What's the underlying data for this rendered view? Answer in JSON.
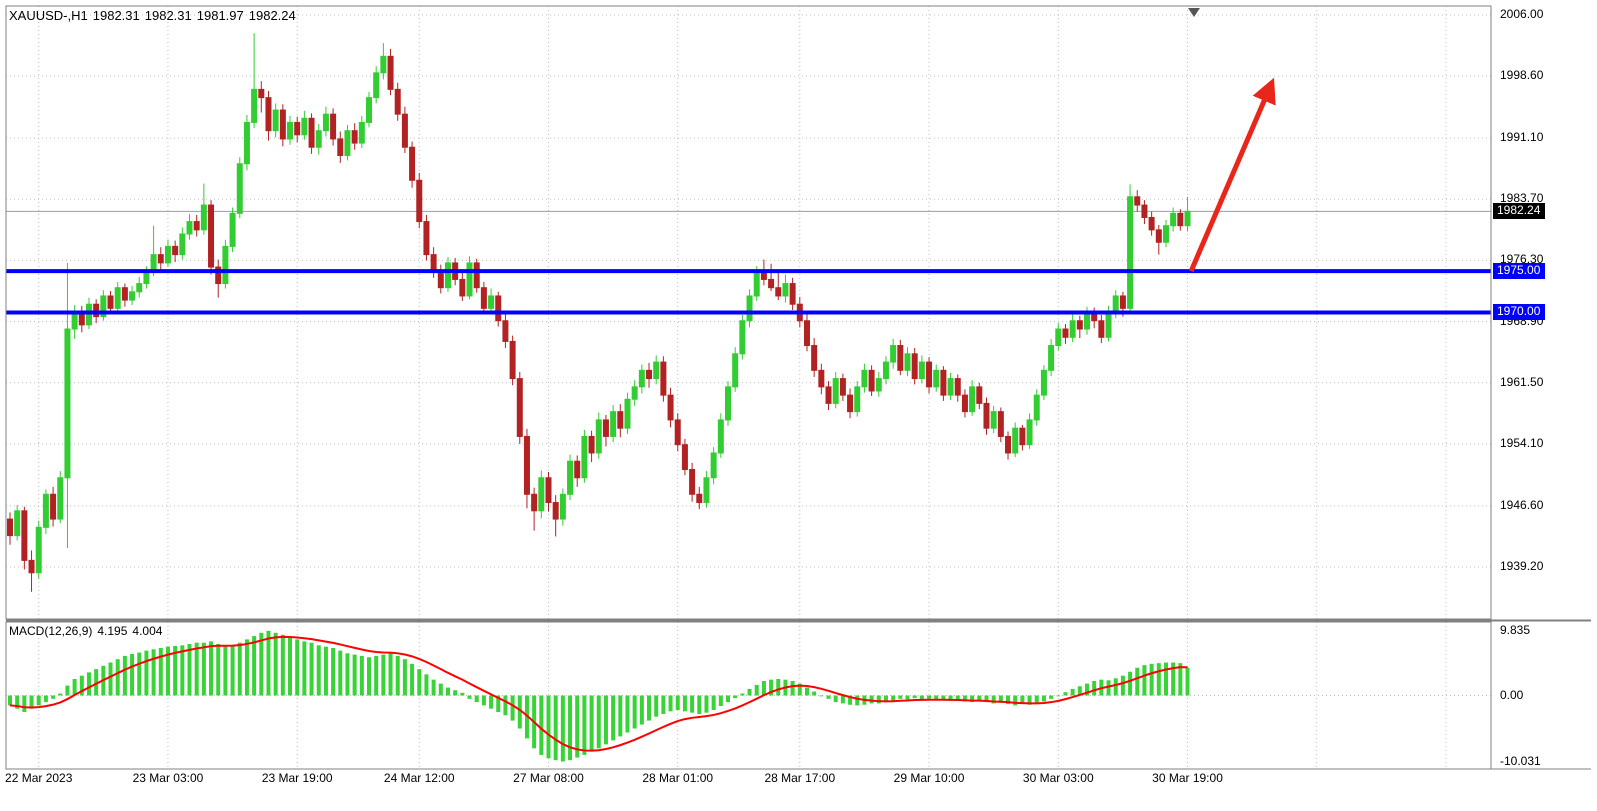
{
  "header": {
    "symbol_period": "XAUUSD-,H1",
    "open": "1982.31",
    "high": "1982.31",
    "low": "1981.97",
    "close": "1982.24"
  },
  "indicator": {
    "name": "MACD(12,26,9)",
    "main_value": "4.195",
    "signal_value": "4.004"
  },
  "axis": {
    "last_price_badge": "1982.24",
    "hline_badge_1": "1975.00",
    "hline_badge_2": "1970.00",
    "macd_tick_1": "9.835",
    "macd_tick_2": "0.00",
    "macd_tick_3": "-10.031"
  },
  "colors": {
    "bull": "#32CD32",
    "bear": "#B22222",
    "macd_bar": "#37D337",
    "macd_signal": "#FF0000",
    "hline": "#0000FF",
    "arrow": "#E8261A",
    "grid": "#BFBFBF",
    "border": "#808080",
    "last_price_line": "#8FA0B3",
    "badge_last_bg": "#000000",
    "badge_hline_bg": "#0000FF",
    "text": "#000000",
    "background": "#FFFFFF"
  },
  "chart_data": {
    "type": "candlestick",
    "symbol": "XAUUSD",
    "timeframe": "H1",
    "last_price": 1982.24,
    "price_ticks": [
      2006.0,
      1998.6,
      1991.1,
      1983.7,
      1976.3,
      1968.9,
      1961.5,
      1954.1,
      1946.6,
      1939.2
    ],
    "time_ticks": [
      {
        "index": 4,
        "label": "22 Mar 2023"
      },
      {
        "index": 22,
        "label": "23 Mar 03:00"
      },
      {
        "index": 40,
        "label": "23 Mar 19:00"
      },
      {
        "index": 57,
        "label": "24 Mar 12:00"
      },
      {
        "index": 75,
        "label": "27 Mar 08:00"
      },
      {
        "index": 93,
        "label": "28 Mar 01:00"
      },
      {
        "index": 110,
        "label": "28 Mar 17:00"
      },
      {
        "index": 128,
        "label": "29 Mar 10:00"
      },
      {
        "index": 146,
        "label": "30 Mar 03:00"
      },
      {
        "index": 164,
        "label": "30 Mar 19:00"
      }
    ],
    "future_grid_indices": [
      182,
      200
    ],
    "horizontal_lines": [
      {
        "price": 1975.0,
        "label": "1975.00"
      },
      {
        "price": 1970.0,
        "label": "1970.00"
      }
    ],
    "arrow": {
      "from_index": 164.5,
      "from_price": 1975.0,
      "to_index": 175.5,
      "to_price": 1997.3
    },
    "candles": [
      [
        1945.0,
        1945.8,
        1941.9,
        1943.0
      ],
      [
        1943.0,
        1946.7,
        1942.4,
        1946.0
      ],
      [
        1946.0,
        1946.5,
        1938.9,
        1940.0
      ],
      [
        1940.0,
        1941.2,
        1936.2,
        1938.5
      ],
      [
        1938.5,
        1944.8,
        1937.8,
        1944.0
      ],
      [
        1944.0,
        1948.6,
        1943.2,
        1948.0
      ],
      [
        1948.0,
        1948.9,
        1944.1,
        1945.0
      ],
      [
        1945.0,
        1950.8,
        1944.5,
        1950.0
      ],
      [
        1950.0,
        1976.0,
        1941.5,
        1968.0
      ],
      [
        1968.0,
        1970.9,
        1966.8,
        1970.0
      ],
      [
        1970.0,
        1970.8,
        1967.6,
        1968.5
      ],
      [
        1968.5,
        1971.8,
        1968.0,
        1971.0
      ],
      [
        1971.0,
        1971.6,
        1968.7,
        1969.5
      ],
      [
        1969.5,
        1972.7,
        1969.0,
        1972.0
      ],
      [
        1972.0,
        1972.6,
        1969.8,
        1970.5
      ],
      [
        1970.5,
        1973.7,
        1970.0,
        1973.0
      ],
      [
        1973.0,
        1973.5,
        1970.7,
        1971.5
      ],
      [
        1971.5,
        1973.2,
        1970.9,
        1972.5
      ],
      [
        1972.5,
        1974.3,
        1971.8,
        1973.5
      ],
      [
        1973.5,
        1975.6,
        1972.9,
        1975.0
      ],
      [
        1975.0,
        1980.5,
        1974.4,
        1977.0
      ],
      [
        1977.0,
        1977.9,
        1975.2,
        1976.0
      ],
      [
        1976.0,
        1978.8,
        1975.5,
        1978.0
      ],
      [
        1978.0,
        1978.7,
        1976.1,
        1977.0
      ],
      [
        1977.0,
        1980.3,
        1976.4,
        1979.5
      ],
      [
        1979.5,
        1981.9,
        1978.8,
        1981.0
      ],
      [
        1981.0,
        1981.8,
        1979.2,
        1980.0
      ],
      [
        1980.0,
        1985.6,
        1979.4,
        1983.0
      ],
      [
        1983.0,
        1983.6,
        1974.6,
        1975.5
      ],
      [
        1975.5,
        1976.4,
        1971.8,
        1973.5
      ],
      [
        1973.5,
        1978.8,
        1972.9,
        1978.0
      ],
      [
        1978.0,
        1982.7,
        1977.3,
        1982.0
      ],
      [
        1982.0,
        1988.8,
        1981.4,
        1988.0
      ],
      [
        1988.0,
        1993.9,
        1987.2,
        1993.0
      ],
      [
        1993.0,
        2003.8,
        1992.3,
        1997.0
      ],
      [
        1997.0,
        1998.0,
        1994.2,
        1996.0
      ],
      [
        1996.0,
        1996.8,
        1990.8,
        1992.0
      ],
      [
        1992.0,
        1995.3,
        1991.2,
        1994.5
      ],
      [
        1994.5,
        1995.2,
        1990.1,
        1991.0
      ],
      [
        1991.0,
        1993.8,
        1990.3,
        1993.0
      ],
      [
        1993.0,
        1993.7,
        1990.6,
        1991.5
      ],
      [
        1991.5,
        1994.4,
        1990.9,
        1993.5
      ],
      [
        1993.5,
        1994.1,
        1989.2,
        1990.0
      ],
      [
        1990.0,
        1992.8,
        1989.1,
        1992.0
      ],
      [
        1992.0,
        1994.9,
        1991.3,
        1994.0
      ],
      [
        1994.0,
        1994.7,
        1990.2,
        1991.0
      ],
      [
        1991.0,
        1991.9,
        1988.1,
        1989.0
      ],
      [
        1989.0,
        1992.7,
        1988.4,
        1992.0
      ],
      [
        1992.0,
        1992.9,
        1989.7,
        1990.5
      ],
      [
        1990.5,
        1993.8,
        1989.9,
        1993.0
      ],
      [
        1993.0,
        1996.7,
        1992.4,
        1996.0
      ],
      [
        1996.0,
        1999.8,
        1995.3,
        1999.0
      ],
      [
        1999.0,
        2002.6,
        1998.2,
        2001.0
      ],
      [
        2001.0,
        2001.9,
        1996.3,
        1997.0
      ],
      [
        1997.0,
        1997.8,
        1993.2,
        1994.0
      ],
      [
        1994.0,
        1994.9,
        1989.3,
        1990.0
      ],
      [
        1990.0,
        1990.7,
        1985.1,
        1986.0
      ],
      [
        1986.0,
        1986.9,
        1980.2,
        1981.0
      ],
      [
        1981.0,
        1981.8,
        1976.3,
        1977.0
      ],
      [
        1977.0,
        1977.9,
        1974.2,
        1975.0
      ],
      [
        1975.0,
        1975.8,
        1972.3,
        1973.0
      ],
      [
        1973.0,
        1976.7,
        1972.5,
        1976.0
      ],
      [
        1976.0,
        1976.6,
        1973.3,
        1974.0
      ],
      [
        1974.0,
        1974.9,
        1971.4,
        1972.0
      ],
      [
        1972.0,
        1976.8,
        1971.6,
        1976.0
      ],
      [
        1976.0,
        1976.5,
        1972.4,
        1973.0
      ],
      [
        1973.0,
        1973.7,
        1969.8,
        1970.5
      ],
      [
        1970.5,
        1972.9,
        1969.9,
        1972.0
      ],
      [
        1972.0,
        1972.5,
        1968.3,
        1969.0
      ],
      [
        1969.0,
        1969.8,
        1965.7,
        1966.5
      ],
      [
        1966.5,
        1967.2,
        1961.2,
        1962.0
      ],
      [
        1962.0,
        1962.8,
        1954.1,
        1955.0
      ],
      [
        1955.0,
        1955.9,
        1946.3,
        1948.0
      ],
      [
        1948.0,
        1948.8,
        1943.6,
        1946.0
      ],
      [
        1946.0,
        1950.9,
        1945.1,
        1950.0
      ],
      [
        1950.0,
        1950.7,
        1945.9,
        1947.0
      ],
      [
        1947.0,
        1947.9,
        1942.9,
        1945.0
      ],
      [
        1945.0,
        1948.7,
        1944.2,
        1948.0
      ],
      [
        1948.0,
        1952.8,
        1947.3,
        1952.0
      ],
      [
        1952.0,
        1952.7,
        1948.9,
        1950.0
      ],
      [
        1950.0,
        1955.8,
        1949.4,
        1955.0
      ],
      [
        1955.0,
        1955.7,
        1951.9,
        1953.0
      ],
      [
        1953.0,
        1957.9,
        1952.3,
        1957.0
      ],
      [
        1957.0,
        1957.6,
        1953.8,
        1955.0
      ],
      [
        1955.0,
        1958.8,
        1954.3,
        1958.0
      ],
      [
        1958.0,
        1958.9,
        1954.9,
        1956.0
      ],
      [
        1956.0,
        1960.3,
        1955.3,
        1959.5
      ],
      [
        1959.5,
        1961.8,
        1958.7,
        1961.0
      ],
      [
        1961.0,
        1963.7,
        1960.2,
        1963.0
      ],
      [
        1963.0,
        1963.9,
        1960.9,
        1962.0
      ],
      [
        1962.0,
        1964.8,
        1961.3,
        1964.0
      ],
      [
        1964.0,
        1964.7,
        1959.2,
        1960.0
      ],
      [
        1960.0,
        1960.9,
        1956.1,
        1957.0
      ],
      [
        1957.0,
        1957.8,
        1953.2,
        1954.0
      ],
      [
        1954.0,
        1954.7,
        1950.3,
        1951.0
      ],
      [
        1951.0,
        1951.8,
        1947.1,
        1948.0
      ],
      [
        1948.0,
        1948.9,
        1946.2,
        1947.0
      ],
      [
        1947.0,
        1950.8,
        1946.4,
        1950.0
      ],
      [
        1950.0,
        1953.7,
        1949.2,
        1953.0
      ],
      [
        1953.0,
        1957.8,
        1952.4,
        1957.0
      ],
      [
        1957.0,
        1961.7,
        1956.3,
        1961.0
      ],
      [
        1961.0,
        1965.8,
        1960.4,
        1965.0
      ],
      [
        1965.0,
        1969.7,
        1964.3,
        1969.0
      ],
      [
        1969.0,
        1972.8,
        1968.2,
        1972.0
      ],
      [
        1972.0,
        1975.6,
        1971.4,
        1975.0
      ],
      [
        1975.0,
        1976.4,
        1973.3,
        1974.0
      ],
      [
        1974.0,
        1975.9,
        1972.6,
        1973.0
      ],
      [
        1973.0,
        1974.8,
        1971.5,
        1972.0
      ],
      [
        1972.0,
        1974.6,
        1971.2,
        1973.5
      ],
      [
        1973.5,
        1974.2,
        1970.3,
        1971.0
      ],
      [
        1971.0,
        1971.9,
        1968.2,
        1969.0
      ],
      [
        1969.0,
        1969.8,
        1965.3,
        1966.0
      ],
      [
        1966.0,
        1966.9,
        1962.2,
        1963.0
      ],
      [
        1963.0,
        1963.8,
        1960.1,
        1961.0
      ],
      [
        1961.0,
        1961.7,
        1958.2,
        1959.0
      ],
      [
        1959.0,
        1962.8,
        1958.4,
        1962.0
      ],
      [
        1962.0,
        1962.6,
        1959.3,
        1960.0
      ],
      [
        1960.0,
        1960.8,
        1957.2,
        1958.0
      ],
      [
        1958.0,
        1961.7,
        1957.4,
        1961.0
      ],
      [
        1961.0,
        1963.8,
        1960.3,
        1963.0
      ],
      [
        1963.0,
        1963.6,
        1959.9,
        1960.5
      ],
      [
        1960.5,
        1962.8,
        1959.8,
        1962.0
      ],
      [
        1962.0,
        1964.7,
        1961.3,
        1964.0
      ],
      [
        1964.0,
        1966.8,
        1963.2,
        1966.0
      ],
      [
        1966.0,
        1966.7,
        1962.4,
        1963.0
      ],
      [
        1963.0,
        1965.8,
        1962.3,
        1965.0
      ],
      [
        1965.0,
        1965.7,
        1961.3,
        1962.0
      ],
      [
        1962.0,
        1964.8,
        1961.4,
        1964.0
      ],
      [
        1964.0,
        1964.6,
        1960.2,
        1961.0
      ],
      [
        1961.0,
        1963.7,
        1960.4,
        1963.0
      ],
      [
        1963.0,
        1963.5,
        1959.3,
        1960.0
      ],
      [
        1960.0,
        1962.7,
        1959.4,
        1962.0
      ],
      [
        1962.0,
        1962.5,
        1959.2,
        1960.0
      ],
      [
        1960.0,
        1960.7,
        1957.3,
        1958.0
      ],
      [
        1958.0,
        1961.8,
        1957.5,
        1961.0
      ],
      [
        1961.0,
        1961.5,
        1958.3,
        1959.0
      ],
      [
        1959.0,
        1959.7,
        1955.2,
        1956.0
      ],
      [
        1956.0,
        1958.7,
        1955.4,
        1958.0
      ],
      [
        1958.0,
        1958.5,
        1954.3,
        1955.0
      ],
      [
        1955.0,
        1955.6,
        1952.2,
        1953.0
      ],
      [
        1953.0,
        1956.7,
        1952.5,
        1956.0
      ],
      [
        1956.0,
        1956.4,
        1953.3,
        1954.0
      ],
      [
        1954.0,
        1957.8,
        1953.5,
        1957.0
      ],
      [
        1957.0,
        1960.7,
        1956.3,
        1960.0
      ],
      [
        1960.0,
        1963.6,
        1959.4,
        1963.0
      ],
      [
        1963.0,
        1966.8,
        1962.3,
        1966.0
      ],
      [
        1966.0,
        1968.7,
        1965.4,
        1968.0
      ],
      [
        1968.0,
        1968.6,
        1966.2,
        1967.0
      ],
      [
        1967.0,
        1969.8,
        1966.4,
        1969.0
      ],
      [
        1969.0,
        1969.6,
        1966.9,
        1968.0
      ],
      [
        1968.0,
        1970.7,
        1967.3,
        1970.0
      ],
      [
        1970.0,
        1970.6,
        1968.1,
        1969.0
      ],
      [
        1969.0,
        1969.7,
        1966.3,
        1967.0
      ],
      [
        1967.0,
        1970.8,
        1966.5,
        1970.0
      ],
      [
        1970.0,
        1972.7,
        1969.3,
        1972.0
      ],
      [
        1972.0,
        1972.5,
        1969.5,
        1970.5
      ],
      [
        1970.5,
        1985.5,
        1970.0,
        1984.0
      ],
      [
        1984.0,
        1984.8,
        1982.2,
        1983.0
      ],
      [
        1983.0,
        1983.6,
        1980.7,
        1981.5
      ],
      [
        1981.5,
        1982.2,
        1979.3,
        1980.0
      ],
      [
        1980.0,
        1980.6,
        1977.0,
        1978.5
      ],
      [
        1978.5,
        1981.2,
        1977.9,
        1980.5
      ],
      [
        1980.5,
        1982.7,
        1979.8,
        1982.0
      ],
      [
        1982.0,
        1982.5,
        1979.9,
        1980.5
      ],
      [
        1980.5,
        1984.0,
        1979.8,
        1982.24
      ]
    ],
    "macd": {
      "params": [
        12,
        26,
        9
      ],
      "last_main": 4.195,
      "last_signal": 4.004,
      "scale": [
        -10.031,
        9.835
      ],
      "histogram": [
        -1.5,
        -2,
        -2.5,
        -2,
        -1.5,
        -1,
        -0.5,
        0.3,
        1.5,
        2.5,
        3,
        3.5,
        4,
        4.5,
        5,
        5.5,
        6,
        6.3,
        6.5,
        6.8,
        7,
        7.2,
        7.4,
        7.5,
        7.6,
        7.8,
        8,
        8,
        8.2,
        7.8,
        7.5,
        7.6,
        8,
        8.5,
        9,
        9.5,
        9.8,
        9.5,
        9.2,
        8.8,
        8.5,
        8.2,
        8,
        7.6,
        7.4,
        7.2,
        6.8,
        6.4,
        6.2,
        6,
        5.8,
        6,
        6.2,
        6.4,
        6,
        5.5,
        4.8,
        4,
        3.2,
        2.4,
        1.8,
        1.2,
        0.8,
        0.4,
        -0.5,
        -1,
        -1.5,
        -2,
        -2.5,
        -3,
        -3.8,
        -5,
        -6.5,
        -8,
        -9,
        -9.5,
        -9.8,
        -10,
        -9.8,
        -9.4,
        -9,
        -8.5,
        -8,
        -7.4,
        -6.8,
        -6.2,
        -5.6,
        -5,
        -4.4,
        -3.8,
        -3.2,
        -2.8,
        -2.4,
        -2.2,
        -2.4,
        -2.6,
        -2.8,
        -2.6,
        -2.2,
        -1.6,
        -1,
        -0.4,
        0.3,
        1,
        1.6,
        2.2,
        2.4,
        2.5,
        2.4,
        2.2,
        1.8,
        1.2,
        0.6,
        0,
        -0.5,
        -1,
        -1.2,
        -1.4,
        -1.5,
        -1.4,
        -1.2,
        -1.2,
        -1,
        -0.8,
        -0.5,
        -0.6,
        -0.4,
        -0.6,
        -0.5,
        -0.7,
        -0.6,
        -0.8,
        -0.7,
        -0.9,
        -1,
        -0.8,
        -1,
        -1.2,
        -1.1,
        -1.3,
        -1.5,
        -1.3,
        -1.4,
        -1.2,
        -0.9,
        -0.5,
        0,
        0.5,
        1,
        1.4,
        1.8,
        2.2,
        2.4,
        2.3,
        2.6,
        3,
        3.6,
        4.2,
        4.6,
        4.8,
        4.9,
        5,
        5,
        4.9,
        4.195
      ]
    }
  }
}
